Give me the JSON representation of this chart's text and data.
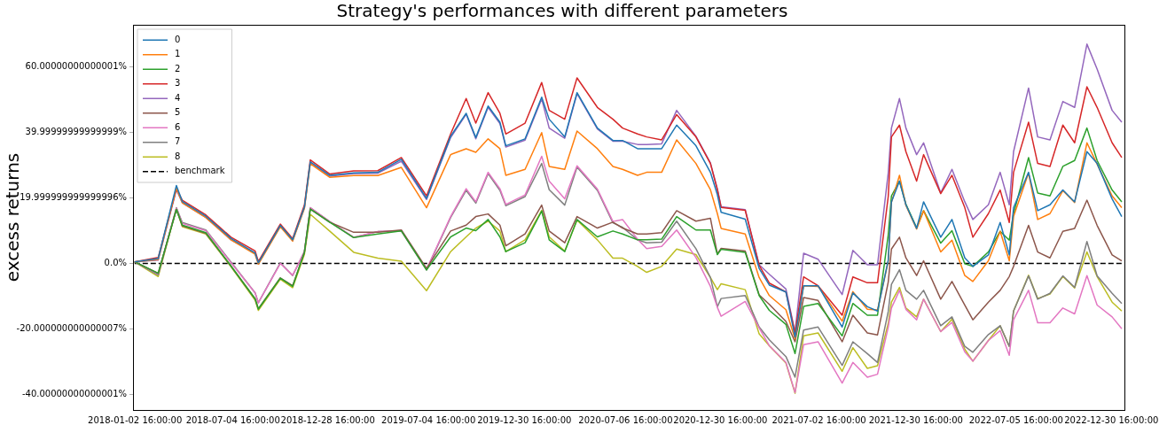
{
  "chart_data": {
    "type": "line",
    "title": "Strategy's performances with different parameters",
    "ylabel": "excess returns",
    "legend": "top left",
    "marker": "none",
    "grid": false,
    "x": [
      "2018-01-02",
      "2018-02-15",
      "2018-03-21",
      "2018-04-01",
      "2018-05-15",
      "2018-07-01",
      "2018-08-15",
      "2018-08-21",
      "2018-10-01",
      "2018-10-24",
      "2018-11-15",
      "2018-11-26",
      "2019-01-01",
      "2019-02-15",
      "2019-04-01",
      "2019-05-15",
      "2019-07-01",
      "2019-08-15",
      "2019-09-13",
      "2019-10-01",
      "2019-10-24",
      "2019-11-15",
      "2019-11-26",
      "2020-01-01",
      "2020-02-01",
      "2020-02-15",
      "2020-03-15",
      "2020-04-07",
      "2020-05-15",
      "2020-06-13",
      "2020-07-01",
      "2020-07-29",
      "2020-08-15",
      "2020-09-12",
      "2020-10-10",
      "2020-11-15",
      "2020-12-12",
      "2020-12-25",
      "2021-01-01",
      "2021-02-15",
      "2021-03-13",
      "2021-04-01",
      "2021-05-02",
      "2021-05-19",
      "2021-06-04",
      "2021-07-01",
      "2021-08-15",
      "2021-09-04",
      "2021-10-01",
      "2021-10-20",
      "2021-11-09",
      "2021-11-15",
      "2021-11-30",
      "2021-12-12",
      "2022-01-01",
      "2022-01-14",
      "2022-02-15",
      "2022-03-08",
      "2022-04-01",
      "2022-04-16",
      "2022-05-15",
      "2022-06-06",
      "2022-06-23",
      "2022-07-01",
      "2022-07-29",
      "2022-08-15",
      "2022-09-07",
      "2022-10-01",
      "2022-10-23",
      "2022-11-15",
      "2022-12-04",
      "2023-01-01",
      "2023-01-19"
    ],
    "series": [
      {
        "name": "0",
        "color": "#1f77b4",
        "values": [
          0.5,
          1.5,
          23.8,
          18.9,
          14.4,
          7.6,
          3.2,
          0.2,
          11.6,
          7.2,
          17.2,
          31,
          26.9,
          27.6,
          27.8,
          31.8,
          19.8,
          38.8,
          45.8,
          38.4,
          48,
          43.1,
          35.9,
          38,
          50.7,
          44,
          38.6,
          52.1,
          41.3,
          37.5,
          37.5,
          35,
          35,
          35,
          42.2,
          35.9,
          27.8,
          21,
          15.6,
          13.5,
          -1.5,
          -6.6,
          -8.7,
          -22.5,
          -6.8,
          -6.8,
          -19.4,
          -9,
          -13.2,
          -14.5,
          1,
          18.8,
          25.1,
          17.9,
          10.7,
          18.8,
          8,
          13.4,
          1.7,
          -0.9,
          2.6,
          12.5,
          2.6,
          17,
          27.8,
          16.1,
          17.9,
          22.4,
          18.8,
          34.1,
          30.5,
          19.7,
          14.3
        ]
      },
      {
        "name": "1",
        "color": "#ff7f0e",
        "values": [
          0.5,
          1.2,
          23,
          18.5,
          14,
          7.2,
          2.8,
          -0.2,
          11.2,
          6.8,
          16.8,
          30.4,
          26.3,
          26.8,
          26.8,
          29.3,
          17,
          33.2,
          35,
          33.9,
          38,
          35,
          26.9,
          28.7,
          39.9,
          29.6,
          28.7,
          40.4,
          35,
          29.6,
          28.7,
          26.9,
          27.8,
          27.8,
          37.7,
          30.5,
          22.5,
          15.2,
          10.7,
          9,
          -4.3,
          -9.8,
          -14.1,
          -23,
          -6.8,
          -7,
          -17.6,
          -8.6,
          -14,
          -14.2,
          0.6,
          18.6,
          26.9,
          17.7,
          10.5,
          16.1,
          3.5,
          7.1,
          -3.7,
          -5.5,
          0.8,
          9.8,
          0.8,
          14.3,
          27.6,
          13.4,
          15.2,
          22.2,
          18.6,
          36.8,
          30.3,
          20.6,
          17
        ]
      },
      {
        "name": "2",
        "color": "#2ca02c",
        "values": [
          0.5,
          -3,
          16.5,
          11.7,
          9.4,
          -0.8,
          -10.8,
          -13.9,
          -4.5,
          -7,
          3.4,
          16.6,
          12.6,
          7.9,
          9,
          9.9,
          -2,
          8.1,
          10.8,
          10,
          13.4,
          8.1,
          3.6,
          6.3,
          16,
          7.2,
          3.6,
          13.4,
          8.1,
          9.9,
          9,
          7.2,
          7.2,
          7.4,
          14.3,
          10.2,
          10.2,
          2.7,
          4.3,
          3.4,
          -9.8,
          -14.3,
          -18.6,
          -27.5,
          -13.1,
          -12.2,
          -22.1,
          -12.2,
          -15.8,
          -15.8,
          8.7,
          20.6,
          25.1,
          18.1,
          10.9,
          16.1,
          6.2,
          10,
          -0.1,
          -0.9,
          3.5,
          9.8,
          7.1,
          15.2,
          32.3,
          21.5,
          20.6,
          29.6,
          31.4,
          41.3,
          31.4,
          22.4,
          18.8
        ]
      },
      {
        "name": "3",
        "color": "#d62728",
        "values": [
          0.5,
          1.8,
          22.8,
          19.3,
          14.8,
          8,
          3.8,
          0.6,
          12,
          7.6,
          17.8,
          31.6,
          27.3,
          28.2,
          28.3,
          32.3,
          20.6,
          39.5,
          50.3,
          42.8,
          52.1,
          45.8,
          39.5,
          42.8,
          55.2,
          46.7,
          44,
          56.6,
          47.6,
          44,
          41.3,
          39.5,
          38.6,
          37.7,
          45.4,
          38.6,
          30.5,
          22.5,
          17.1,
          16.2,
          -0.6,
          -6,
          -8.7,
          -21.3,
          -4.1,
          -6.8,
          -15.8,
          -4.1,
          -5.9,
          -5.9,
          20.4,
          38.6,
          42.2,
          34.1,
          25.1,
          33.2,
          21.3,
          26.9,
          17,
          8,
          15.2,
          22.4,
          12.5,
          27.8,
          43.1,
          30.5,
          29.6,
          42.2,
          36.8,
          53.9,
          47.6,
          36.8,
          32.3
        ]
      },
      {
        "name": "4",
        "color": "#9467bd",
        "values": [
          0.5,
          1,
          22.5,
          18.5,
          14,
          7.2,
          3,
          0,
          11.4,
          7,
          17,
          30.8,
          26.6,
          27.4,
          27.5,
          31.2,
          19.5,
          38.4,
          45.5,
          38,
          47.6,
          42.7,
          35.5,
          37.6,
          50.2,
          41.3,
          38.2,
          51.8,
          41,
          37.3,
          37.3,
          36.3,
          36.3,
          36.5,
          46.7,
          38.8,
          30.7,
          22.7,
          17.3,
          16.4,
          -0.4,
          -3.3,
          -7.8,
          -21,
          3.1,
          1.3,
          -9.5,
          4,
          -0.4,
          -0.4,
          27.6,
          41.3,
          50.3,
          41.3,
          33.2,
          36.8,
          21.5,
          28.7,
          18.8,
          13.4,
          17.9,
          27.8,
          17.9,
          34.1,
          53.5,
          38.6,
          37.7,
          49.4,
          47.6,
          66.9,
          59.3,
          46.7,
          43.1
        ]
      },
      {
        "name": "5",
        "color": "#8c564b",
        "values": [
          0.5,
          -3,
          16.5,
          11.5,
          9.2,
          -0.8,
          -10.8,
          -13.8,
          -4.4,
          -6.8,
          3.4,
          16.6,
          12.6,
          9.5,
          9.5,
          10.2,
          -1.5,
          9.9,
          11.7,
          14.3,
          15.1,
          11.7,
          5.4,
          9,
          17.8,
          9.9,
          6.3,
          14.3,
          10.8,
          12.6,
          10.8,
          9,
          9,
          9.4,
          16.1,
          12.9,
          13.8,
          2.9,
          4.6,
          3.8,
          -9.6,
          -12.5,
          -17.7,
          -23.9,
          -10.4,
          -11.3,
          -23.9,
          -15.8,
          -21.2,
          -21.8,
          -5.7,
          4.4,
          8,
          1.7,
          -3.7,
          0.8,
          -10.9,
          -5.5,
          -12.7,
          -17.2,
          -11.8,
          -8.2,
          -4,
          -0.9,
          11.6,
          3.5,
          1.7,
          9.8,
          10.7,
          19.3,
          11.6,
          2.6,
          0.8
        ]
      },
      {
        "name": "6",
        "color": "#e377c2",
        "values": [
          0.5,
          -3.2,
          16.8,
          12.2,
          10,
          0.2,
          -9,
          -12,
          0,
          -3.6,
          3.6,
          17,
          12.8,
          8,
          9.7,
          10,
          -1.8,
          14.3,
          22.8,
          18.8,
          27.8,
          22.8,
          18,
          20.9,
          32.7,
          25.1,
          19.7,
          29.8,
          22.7,
          12.8,
          13.4,
          7.4,
          4.5,
          5.2,
          10.2,
          1.8,
          -7,
          -13.4,
          -16.1,
          -11.6,
          -19.7,
          -25.1,
          -30.2,
          -39.4,
          -24.8,
          -23.9,
          -36.5,
          -30.2,
          -34.7,
          -33.8,
          -19.5,
          -13.6,
          -8.2,
          -14,
          -17.2,
          -10.9,
          -20.8,
          -18,
          -27,
          -29.8,
          -23.5,
          -20.5,
          -28,
          -17.2,
          -8.2,
          -18.1,
          -18.1,
          -13.6,
          -15.4,
          -3.7,
          -12.7,
          -16.3,
          -19.9
        ]
      },
      {
        "name": "7",
        "color": "#7f7f7f",
        "values": [
          0.5,
          -3.5,
          17,
          12.5,
          10.2,
          0.4,
          -9,
          -12,
          0.2,
          -3.7,
          3.6,
          17,
          12.8,
          7.9,
          9.7,
          9.9,
          -2,
          14,
          22.3,
          18.4,
          27.4,
          22.3,
          17.6,
          20.4,
          30.5,
          22.5,
          17.8,
          29.4,
          22.3,
          12.4,
          11,
          7.2,
          6.3,
          6.5,
          12.9,
          4.5,
          -4.3,
          -13.2,
          -10.7,
          -9.8,
          -19.4,
          -23.3,
          -28.4,
          -34.7,
          -20.3,
          -19.4,
          -31.1,
          -23.9,
          -27.5,
          -30.2,
          -14.7,
          -6.4,
          -1.9,
          -8.2,
          -10.9,
          -8.2,
          -19,
          -16.3,
          -25.3,
          -27.1,
          -21.7,
          -19,
          -25.3,
          -14.5,
          -3.8,
          -10.9,
          -9.1,
          -3.8,
          -7.3,
          6.7,
          -3.8,
          -9.1,
          -12.2
        ]
      },
      {
        "name": "8",
        "color": "#bcbd22",
        "values": [
          0.5,
          -4,
          16.7,
          11.2,
          9,
          -1,
          -11.2,
          -14.3,
          -4.8,
          -7.4,
          2.8,
          15,
          9.9,
          3.4,
          1.6,
          0.7,
          -8.3,
          3.6,
          8.1,
          10.8,
          12.9,
          9.9,
          3.6,
          7.2,
          16.2,
          8.1,
          3.8,
          13.2,
          7.2,
          1.6,
          1.6,
          -0.9,
          -2.7,
          -0.9,
          4.4,
          2.7,
          -4.3,
          -8,
          -6.2,
          -8,
          -21.5,
          -25.1,
          -30.4,
          -39.6,
          -22.1,
          -21.2,
          -32.9,
          -25.7,
          -32,
          -31.2,
          -18.3,
          -11.8,
          -7.3,
          -13.6,
          -16.3,
          -10.9,
          -20.8,
          -17,
          -26.2,
          -29.8,
          -23.5,
          -19,
          -25.3,
          -14.5,
          -3.6,
          -10.7,
          -9.3,
          -4,
          -7.5,
          3.5,
          -4,
          -11.8,
          -14.5
        ]
      },
      {
        "name": "benchmark",
        "color": "#000000",
        "line_style": "dashed",
        "x": [
          "2018-01-02",
          "2023-01-19"
        ],
        "values": [
          0,
          0
        ]
      }
    ],
    "xlim": [
      "2017-12-30",
      "2023-01-24"
    ],
    "xticks": [
      {
        "value": "2018-01-02T16:00",
        "label": "2018-01-02 16:00:00"
      },
      {
        "value": "2018-07-04T16:00",
        "label": "2018-07-04 16:00:00"
      },
      {
        "value": "2018-12-28T16:00",
        "label": "2018-12-28 16:00:00"
      },
      {
        "value": "2019-07-04T16:00",
        "label": "2019-07-04 16:00:00"
      },
      {
        "value": "2019-12-30T16:00",
        "label": "2019-12-30 16:00:00"
      },
      {
        "value": "2020-07-06T16:00",
        "label": "2020-07-06 16:00:00"
      },
      {
        "value": "2020-12-30T16:00",
        "label": "2020-12-30 16:00:00"
      },
      {
        "value": "2021-07-02T16:00",
        "label": "2021-07-02 16:00:00"
      },
      {
        "value": "2021-12-30T16:00",
        "label": "2021-12-30 16:00:00"
      },
      {
        "value": "2022-07-05T16:00",
        "label": "2022-07-05 16:00:00"
      },
      {
        "value": "2022-12-30T16:00",
        "label": "2022-12-30 16:00:00"
      }
    ],
    "ylim": [
      -44.7,
      72.8
    ],
    "yticks": [
      {
        "value": -40,
        "label": "-40.00000000000001%"
      },
      {
        "value": -20,
        "label": "-20.000000000000007%"
      },
      {
        "value": 0,
        "label": "0.0%"
      },
      {
        "value": 20,
        "label": "19.999999999999996%"
      },
      {
        "value": 40,
        "label": "39.99999999999999%"
      },
      {
        "value": 60,
        "label": "60.00000000000001%"
      }
    ]
  }
}
